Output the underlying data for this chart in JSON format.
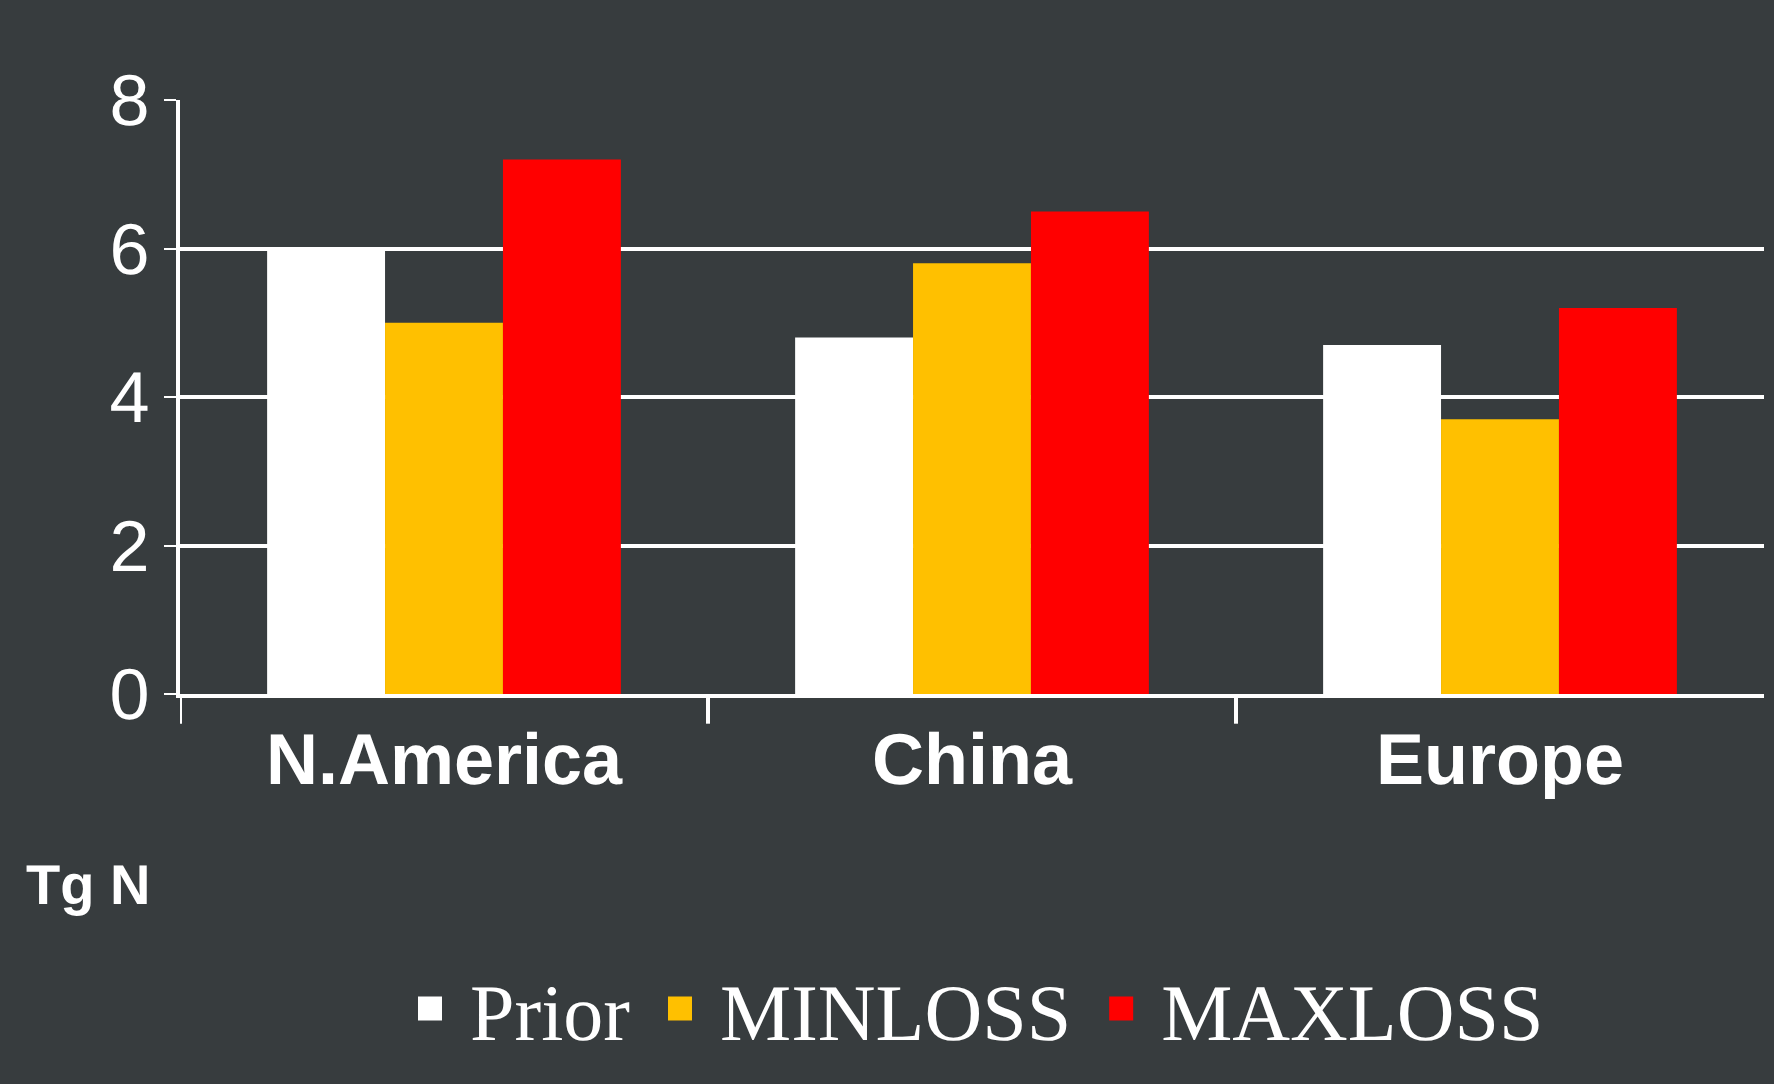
{
  "chart_data": {
    "type": "bar",
    "ylabel": "Tg N",
    "categories": [
      "N.America",
      "China",
      "Europe"
    ],
    "series": [
      {
        "name": "Prior",
        "color": "#ffffff",
        "values": [
          6.0,
          4.8,
          4.7
        ]
      },
      {
        "name": "MINLOSS",
        "color": "#ffc000",
        "values": [
          5.0,
          5.8,
          3.7
        ]
      },
      {
        "name": "MAXLOSS",
        "color": "#ff0000",
        "values": [
          7.2,
          6.5,
          5.2
        ]
      }
    ],
    "ylim": [
      0,
      8
    ],
    "yticks": [
      0,
      2,
      4,
      6,
      8
    ],
    "grid": "y",
    "legend": "bottom"
  }
}
